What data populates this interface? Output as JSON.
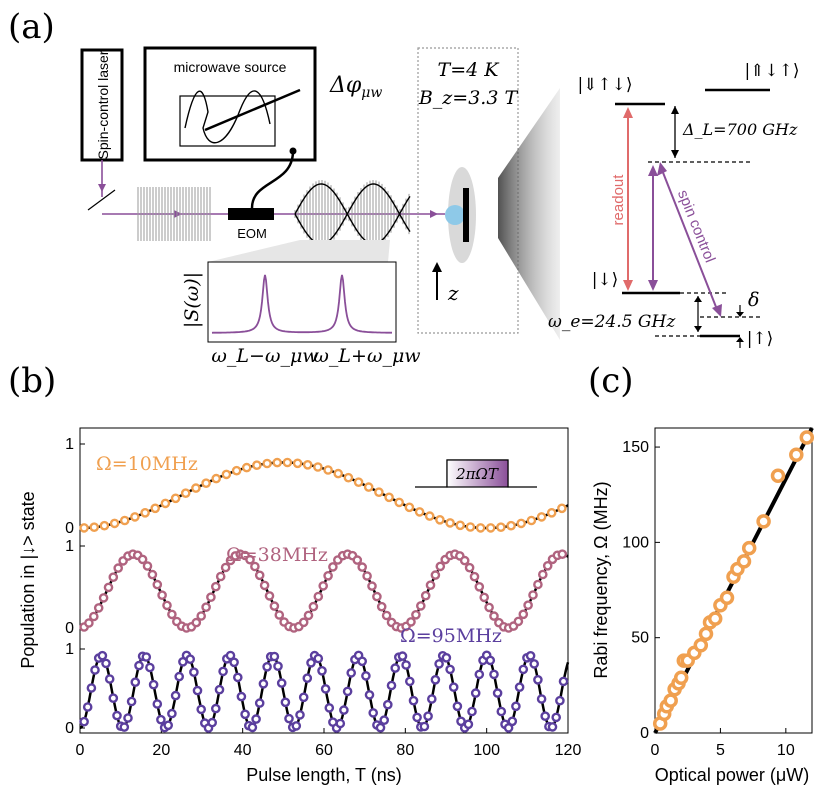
{
  "panel_a": {
    "label": "(a)",
    "laser_label": "Spin-control laser",
    "microwave_label": "microwave source",
    "phase_label": "Δφ_μw",
    "phase_main": "Δφ",
    "phase_sub": "μw",
    "eom_label": "EOM",
    "temperature": "T=4 K",
    "field": "B_z=3.3 T",
    "z_axis": "z",
    "spectrum_ylabel": "|S(ω)|",
    "spectrum_left": "ω_L−ω_μw",
    "spectrum_right": "ω_L+ω_μw",
    "level_excited_left": "|⇓↑↓⟩",
    "level_excited_right": "|⇑↓↑⟩",
    "delta_L": "Δ_L=700 GHz",
    "readout_label": "readout",
    "spin_control_label": "spin control",
    "ground_down": "|↓⟩",
    "ground_up": "|↑⟩",
    "omega_e": "ω_e=24.5 GHz",
    "delta": "δ",
    "colors": {
      "purple": "#8a4f99",
      "readout": "#e06b6b",
      "gray": "#9a9a9a"
    }
  },
  "chart_data": [
    {
      "panel": "(b)",
      "type": "scatter",
      "xlabel": "Pulse length, T (ns)",
      "ylabel": "Population in |↓> state",
      "xlim": [
        0,
        120
      ],
      "xticks": [
        0,
        20,
        40,
        60,
        80,
        100,
        120
      ],
      "yticks_each": [
        0,
        1
      ],
      "inset_pulse_label": "2πΩT",
      "series": [
        {
          "name": "Ω=10MHz",
          "color": "#f0a050",
          "rabi_mhz": 10,
          "amplitude": 0.78,
          "dt_ns": 2.5,
          "t_start": 1,
          "t_end": 119
        },
        {
          "name": "Ω=38MHz",
          "color": "#b0637f",
          "rabi_mhz": 38,
          "amplitude": 0.9,
          "dt_ns": 1.2,
          "t_start": 1,
          "t_end": 119
        },
        {
          "name": "Ω=95MHz",
          "color": "#5b3f9e",
          "rabi_mhz": 95,
          "amplitude": 0.92,
          "dt_ns": 0.9,
          "t_start": 1,
          "t_end": 119
        }
      ]
    },
    {
      "panel": "(c)",
      "type": "scatter",
      "xlabel": "Optical power (μW)",
      "ylabel": "Rabi frequency, Ω (MHz)",
      "xlim": [
        0,
        12
      ],
      "ylim": [
        0,
        160
      ],
      "xticks": [
        0,
        5,
        10
      ],
      "yticks": [
        0,
        50,
        100,
        150
      ],
      "fit_line": {
        "x": [
          0,
          12
        ],
        "y": [
          0,
          160
        ]
      },
      "x": [
        0.4,
        0.7,
        0.9,
        1.2,
        1.5,
        1.8,
        2.0,
        2.2,
        2.5,
        3.0,
        3.5,
        3.9,
        4.2,
        4.6,
        5.0,
        5.5,
        6.0,
        6.3,
        6.8,
        7.2,
        8.3,
        9.4,
        10.8,
        11.6
      ],
      "y": [
        5,
        10,
        14,
        17,
        23,
        26,
        29,
        38,
        38,
        42,
        46,
        52,
        58,
        60,
        67,
        71,
        82,
        86,
        90,
        97,
        111,
        135,
        146,
        155
      ],
      "color": "#f0a050"
    }
  ]
}
